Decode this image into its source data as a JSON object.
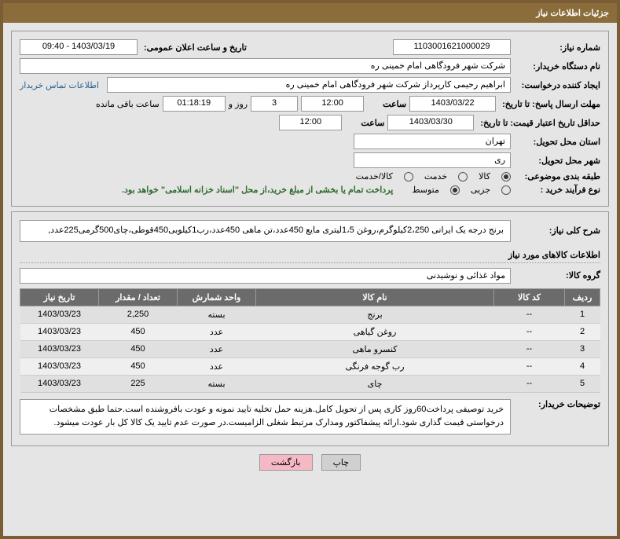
{
  "header": {
    "title": "جزئیات اطلاعات نیاز"
  },
  "fields": {
    "need_no_label": "شماره نیاز:",
    "need_no": "1103001621000029",
    "announce_date_label": "تاریخ و ساعت اعلان عمومی:",
    "announce_date": "1403/03/19 - 09:40",
    "buyer_org_label": "نام دستگاه خریدار:",
    "buyer_org": "شرکت شهر فرودگاهی امام خمینی  ره",
    "requester_label": "ایجاد کننده درخواست:",
    "requester": "ابراهیم رحیمی کارپرداز شرکت شهر فرودگاهی امام خمینی  ره",
    "buyer_contact_link": "اطلاعات تماس خریدار",
    "deadline_label": "مهلت ارسال پاسخ: تا تاریخ:",
    "deadline_date": "1403/03/22",
    "time_label": "ساعت",
    "deadline_time": "12:00",
    "days_val": "3",
    "days_txt": "روز و",
    "remaining": "01:18:19",
    "remaining_txt": "ساعت باقی مانده",
    "validity_label": "حداقل تاریخ اعتبار قیمت: تا تاریخ:",
    "validity_date": "1403/03/30",
    "validity_time": "12:00",
    "province_label": "استان محل تحویل:",
    "province": "تهران",
    "city_label": "شهر محل تحویل:",
    "city": "ری",
    "category_label": "طبقه بندی موضوعی:",
    "cat_goods": "کالا",
    "cat_service": "خدمت",
    "cat_both": "کالا/خدمت",
    "purchase_type_label": "نوع فرآیند خرید :",
    "pt_partial": "جزیی",
    "pt_medium": "متوسط",
    "payment_note": "پرداخت تمام یا بخشی از مبلغ خرید،از محل \"اسناد خزانه اسلامی\" خواهد بود.",
    "summary_label": "شرح کلی نیاز:",
    "summary": "برنج درجه یک ایرانی 2،250کیلوگرم،روغن 1،5لیتری مایع 450عدد،تن ماهی 450عدد،رب1کیلویی450قوطی،چای500گرمی225عدد,",
    "items_section": "اطلاعات کالاهای مورد نیاز",
    "goods_group_label": "گروه کالا:",
    "goods_group": "مواد غذائی و نوشیدنی",
    "buyer_notes_label": "توضیحات خریدار:",
    "buyer_notes": "خرید توصیفی پرداخت60روز کاری پس از تحویل کامل.هزینه حمل تخلیه تایید نمونه و عودت بافروشنده است.حتما طبق مشخصات درخواستی قیمت گذاری شود.ارائه پیشفاکتور ومدارک مرتبط شغلی الزامیست.در صورت عدم تایید یک کالا کل بار عودت میشود."
  },
  "table": {
    "headers": {
      "row": "ردیف",
      "code": "کد کالا",
      "name": "نام کالا",
      "unit": "واحد شمارش",
      "qty": "تعداد / مقدار",
      "date": "تاریخ نیاز"
    },
    "rows": [
      {
        "idx": "1",
        "code": "--",
        "name": "برنج",
        "unit": "بسته",
        "qty": "2,250",
        "date": "1403/03/23"
      },
      {
        "idx": "2",
        "code": "--",
        "name": "روغن گیاهی",
        "unit": "عدد",
        "qty": "450",
        "date": "1403/03/23"
      },
      {
        "idx": "3",
        "code": "--",
        "name": "کنسرو ماهی",
        "unit": "عدد",
        "qty": "450",
        "date": "1403/03/23"
      },
      {
        "idx": "4",
        "code": "--",
        "name": "رب گوجه فرنگی",
        "unit": "عدد",
        "qty": "450",
        "date": "1403/03/23"
      },
      {
        "idx": "5",
        "code": "--",
        "name": "چای",
        "unit": "بسته",
        "qty": "225",
        "date": "1403/03/23"
      }
    ]
  },
  "buttons": {
    "print": "چاپ",
    "back": "بازگشت"
  },
  "colors": {
    "header_bg": "#8a6d3b",
    "border": "#7a5c35",
    "th_bg": "#6b6b6b",
    "link": "#2a6496",
    "green": "#2d6a2d",
    "btn_pink": "#f5b8c5"
  }
}
